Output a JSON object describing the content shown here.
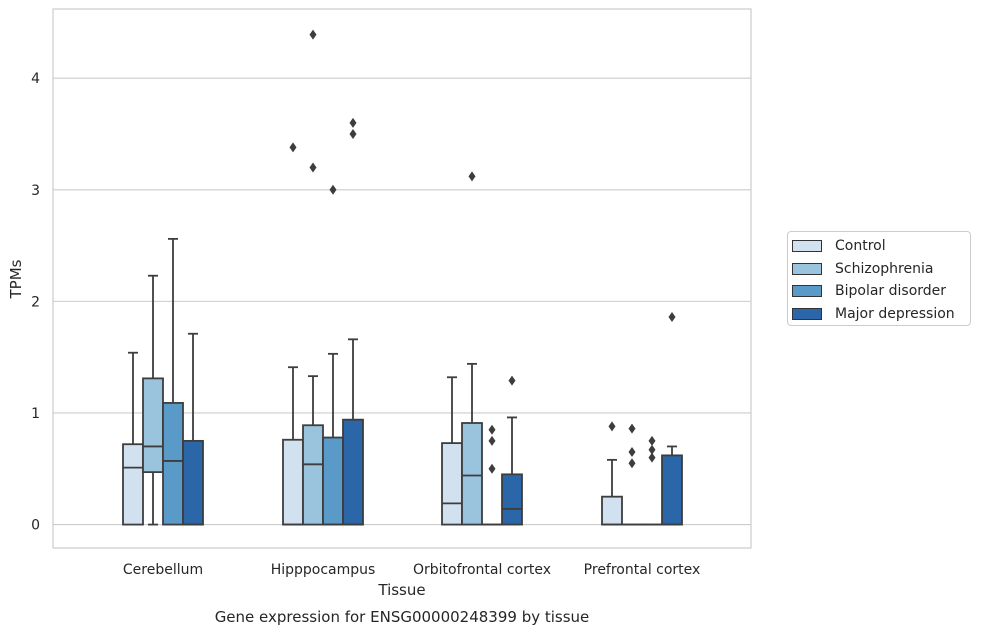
{
  "chart_data": {
    "type": "box",
    "title": "Gene expression for ENSG00000248399 by tissue",
    "xlabel": "Tissue",
    "ylabel": "TPMs",
    "ylim": [
      -0.21,
      4.62
    ],
    "yticks": [
      0,
      1,
      2,
      3,
      4
    ],
    "grid": "horizontal",
    "legend_position": "right",
    "categories": [
      "Cerebellum",
      "Hipppocampus",
      "Orbitofrontal cortex",
      "Prefrontal cortex"
    ],
    "series": [
      {
        "name": "Control",
        "color": "#d2e1f0",
        "boxes": [
          {
            "min": 0,
            "q1": 0,
            "median": 0.51,
            "q3": 0.72,
            "max": 1.54,
            "outliers": []
          },
          {
            "min": 0,
            "q1": 0,
            "median": 0,
            "q3": 0.76,
            "max": 1.41,
            "outliers": [
              3.38
            ]
          },
          {
            "min": 0,
            "q1": 0,
            "median": 0.19,
            "q3": 0.73,
            "max": 1.32,
            "outliers": []
          },
          {
            "min": 0,
            "q1": 0,
            "median": 0,
            "q3": 0.25,
            "max": 0.58,
            "outliers": [
              0.88
            ]
          }
        ]
      },
      {
        "name": "Schizophrenia",
        "color": "#9ac4dd",
        "boxes": [
          {
            "min": 0,
            "q1": 0.47,
            "median": 0.7,
            "q3": 1.31,
            "max": 2.23,
            "outliers": []
          },
          {
            "min": 0,
            "q1": 0,
            "median": 0.54,
            "q3": 0.89,
            "max": 1.33,
            "outliers": [
              4.39,
              3.2
            ]
          },
          {
            "min": 0,
            "q1": 0,
            "median": 0.44,
            "q3": 0.91,
            "max": 1.44,
            "outliers": [
              3.12
            ]
          },
          {
            "min": 0,
            "q1": 0,
            "median": 0,
            "q3": 0,
            "max": 0,
            "outliers": [
              0.86,
              0.65,
              0.55
            ]
          }
        ]
      },
      {
        "name": "Bipolar disorder",
        "color": "#5a9ac8",
        "boxes": [
          {
            "min": 0,
            "q1": 0,
            "median": 0.57,
            "q3": 1.09,
            "max": 2.56,
            "outliers": []
          },
          {
            "min": 0,
            "q1": 0,
            "median": 0,
            "q3": 0.78,
            "max": 1.53,
            "outliers": [
              3.0
            ]
          },
          {
            "min": 0,
            "q1": 0,
            "median": 0,
            "q3": 0,
            "max": 0,
            "outliers": [
              0.85,
              0.75,
              0.5
            ]
          },
          {
            "min": 0,
            "q1": 0,
            "median": 0,
            "q3": 0,
            "max": 0,
            "outliers": [
              0.75,
              0.67,
              0.6
            ]
          }
        ]
      },
      {
        "name": "Major depression",
        "color": "#2a66a8",
        "boxes": [
          {
            "min": 0,
            "q1": 0,
            "median": 0,
            "q3": 0.75,
            "max": 1.71,
            "outliers": []
          },
          {
            "min": 0,
            "q1": 0,
            "median": 0,
            "q3": 0.94,
            "max": 1.66,
            "outliers": [
              3.6,
              3.5
            ]
          },
          {
            "min": 0,
            "q1": 0,
            "median": 0.14,
            "q3": 0.45,
            "max": 0.96,
            "outliers": [
              1.29
            ]
          },
          {
            "min": 0,
            "q1": 0,
            "median": 0,
            "q3": 0.62,
            "max": 0.7,
            "outliers": [
              1.86
            ]
          }
        ]
      }
    ]
  }
}
